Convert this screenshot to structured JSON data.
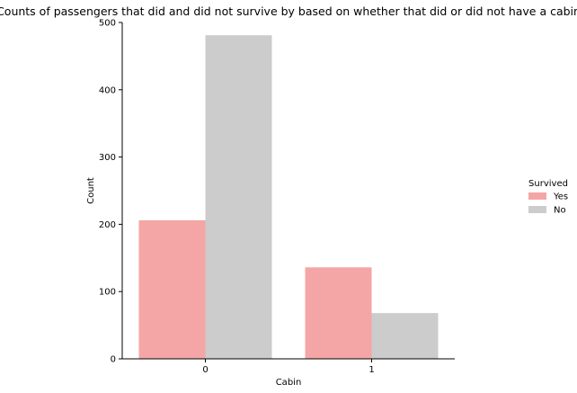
{
  "chart_data": {
    "type": "bar",
    "title": "Counts of passengers that did and did not survive by based on whether that did or did not have a cabin",
    "xlabel": "Cabin",
    "ylabel": "Count",
    "categories": [
      "0",
      "1"
    ],
    "ylim": [
      0,
      500
    ],
    "yticks": [
      0,
      100,
      200,
      300,
      400,
      500
    ],
    "grid": false,
    "legend": {
      "title": "Survived",
      "placement": "right"
    },
    "series": [
      {
        "name": "Yes",
        "values": [
          206,
          136
        ],
        "color": "#f4a6a6"
      },
      {
        "name": "No",
        "values": [
          481,
          68
        ],
        "color": "#cccccc"
      }
    ]
  }
}
